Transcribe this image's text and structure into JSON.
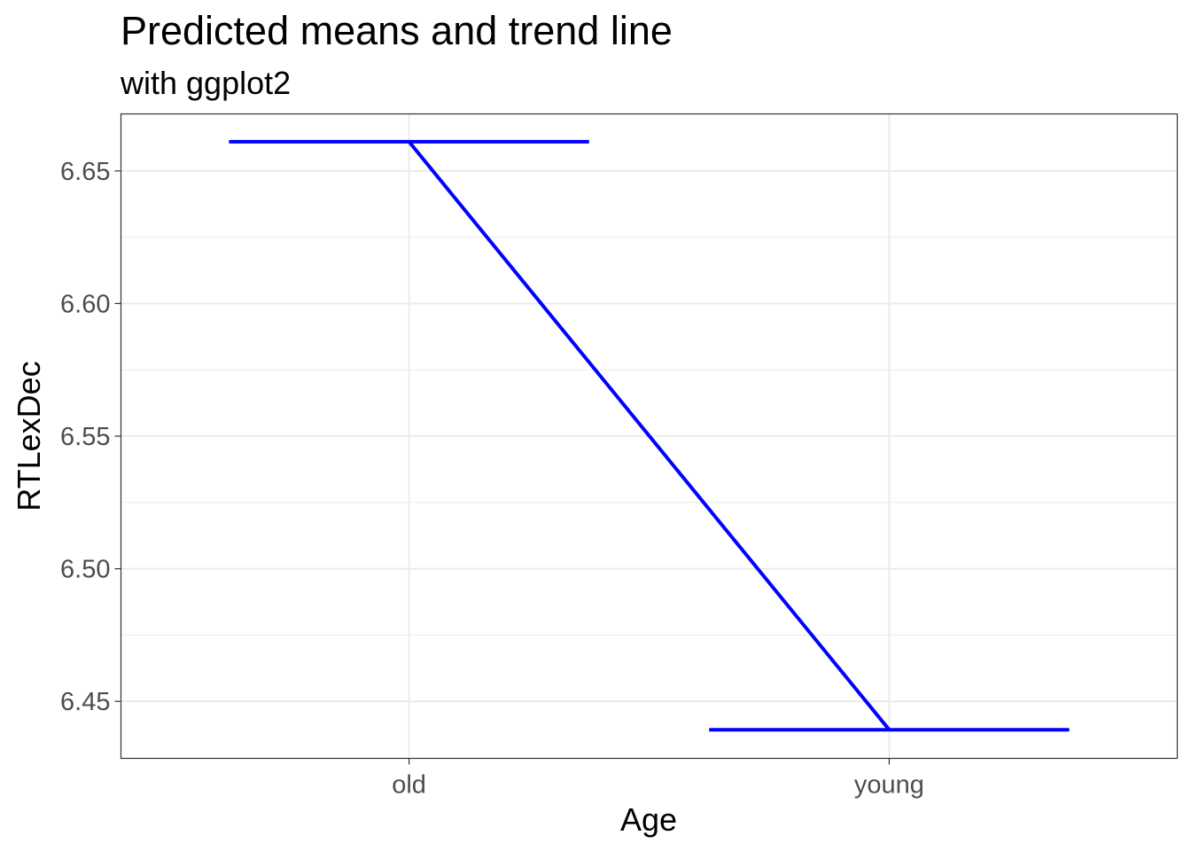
{
  "chart_data": {
    "type": "line",
    "title": "Predicted means and trend line",
    "subtitle": "with ggplot2",
    "xlabel": "Age",
    "ylabel": "RTLexDec",
    "categories": [
      "old",
      "young"
    ],
    "values": [
      6.661,
      6.4393
    ],
    "ylim": [
      6.4285,
      6.6715
    ],
    "yticks": [
      6.45,
      6.5,
      6.55,
      6.6,
      6.65
    ],
    "ytick_labels": [
      "6.45",
      "6.50",
      "6.55",
      "6.60",
      "6.65"
    ],
    "grid": true,
    "mean_bar_halfwidth": 0.375,
    "line_color": "#0000ff",
    "grid_color": "#ebebeb",
    "panel_border_color": "#333333"
  }
}
